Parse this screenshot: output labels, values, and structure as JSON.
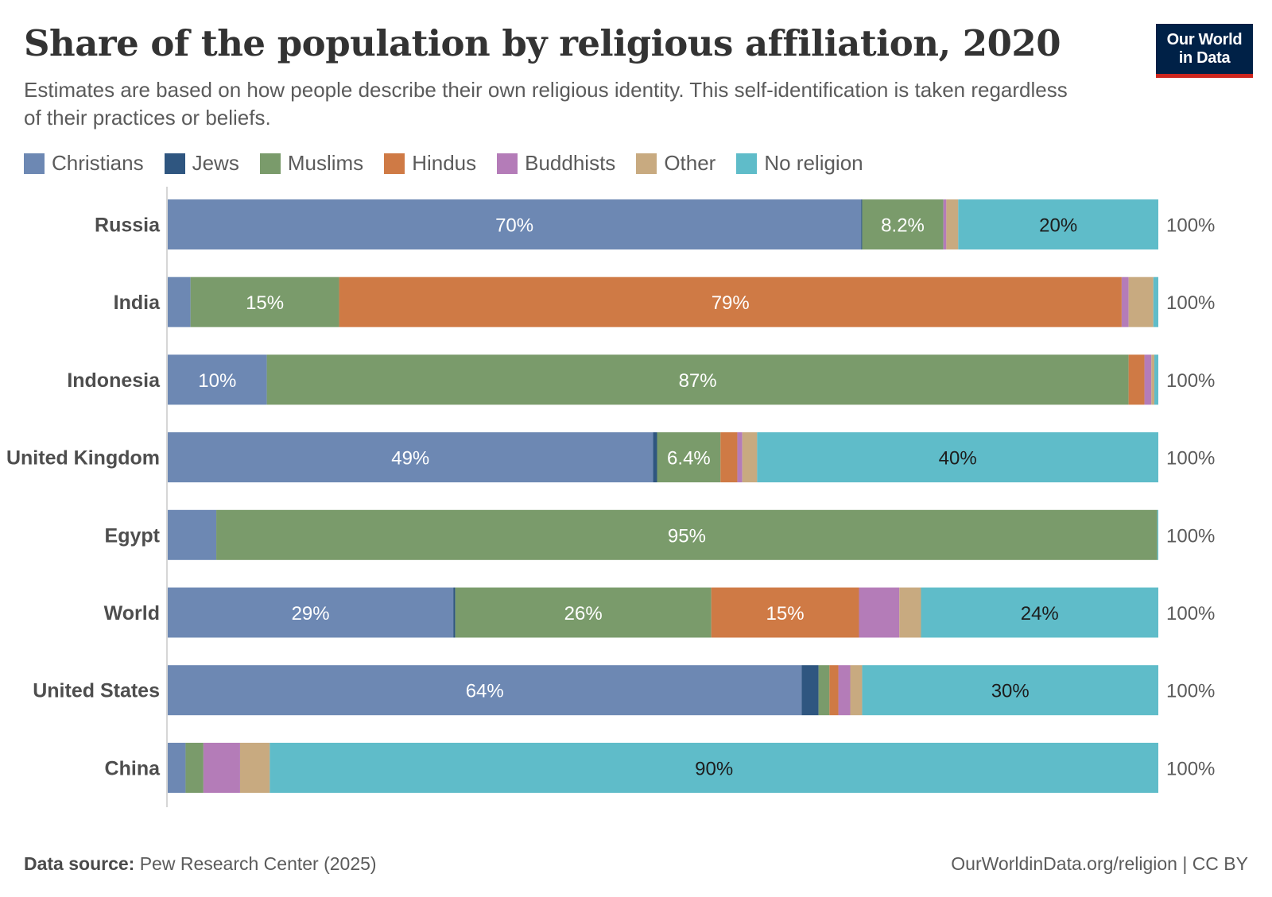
{
  "title": "Share of the population by religious affiliation, 2020",
  "subtitle": "Estimates are based on how people describe their own religious identity. This self-identification is taken regardless of their practices or beliefs.",
  "logo": {
    "line1": "Our World",
    "line2": "in Data"
  },
  "footer": {
    "source_label": "Data source:",
    "source_value": "Pew Research Center (2025)",
    "url": "OurWorldinData.org/religion | CC BY"
  },
  "chart_data": {
    "type": "bar",
    "orientation": "horizontal",
    "stacked": true,
    "title": "Share of the population by religious affiliation, 2020",
    "categories": [
      "Russia",
      "India",
      "Indonesia",
      "United Kingdom",
      "Egypt",
      "World",
      "United States",
      "China"
    ],
    "totals": [
      "100%",
      "100%",
      "100%",
      "100%",
      "100%",
      "100%",
      "100%",
      "100%"
    ],
    "xlim": [
      0,
      100
    ],
    "legend_position": "top-left",
    "series": [
      {
        "name": "Christians",
        "color": "#6d88b3",
        "label_color": "#ffffff",
        "values": [
          70,
          2.3,
          10,
          49,
          4.9,
          29,
          64,
          1.8
        ],
        "labels": [
          "70%",
          "",
          "10%",
          "49%",
          "",
          "29%",
          "64%",
          ""
        ]
      },
      {
        "name": "Jews",
        "color": "#2f5680",
        "label_color": "#ffffff",
        "values": [
          0.1,
          0,
          0,
          0.4,
          0,
          0.2,
          1.7,
          0
        ],
        "labels": [
          "",
          "",
          "",
          "",
          "",
          "",
          "",
          ""
        ]
      },
      {
        "name": "Muslims",
        "color": "#7a9b6b",
        "label_color": "#ffffff",
        "values": [
          8.2,
          15,
          87,
          6.4,
          95,
          26,
          1.1,
          1.8
        ],
        "labels": [
          "8.2%",
          "15%",
          "87%",
          "6.4%",
          "95%",
          "26%",
          "",
          ""
        ]
      },
      {
        "name": "Hindus",
        "color": "#cf7a45",
        "label_color": "#ffffff",
        "values": [
          0,
          79,
          1.6,
          1.7,
          0,
          15,
          0.9,
          0
        ],
        "labels": [
          "",
          "79%",
          "",
          "",
          "",
          "15%",
          "",
          ""
        ]
      },
      {
        "name": "Buddhists",
        "color": "#b47cb8",
        "label_color": "#ffffff",
        "values": [
          0.3,
          0.7,
          0.7,
          0.5,
          0,
          4.1,
          1.2,
          3.7
        ],
        "labels": [
          "",
          "",
          "",
          "",
          "",
          "",
          "",
          ""
        ]
      },
      {
        "name": "Other",
        "color": "#c8aa80",
        "label_color": "#ffffff",
        "values": [
          1.2,
          2.5,
          0.3,
          1.5,
          0,
          2.2,
          1.2,
          3.0
        ],
        "labels": [
          "",
          "",
          "",
          "",
          "",
          "",
          "",
          ""
        ]
      },
      {
        "name": "No religion",
        "color": "#5fbcc9",
        "label_color": "#1d1d1d",
        "values": [
          20.2,
          0.5,
          0.4,
          40.5,
          0.1,
          24.1,
          29.9,
          89.7
        ],
        "labels": [
          "20%",
          "",
          "",
          "40%",
          "",
          "24%",
          "30%",
          "90%"
        ]
      }
    ]
  }
}
